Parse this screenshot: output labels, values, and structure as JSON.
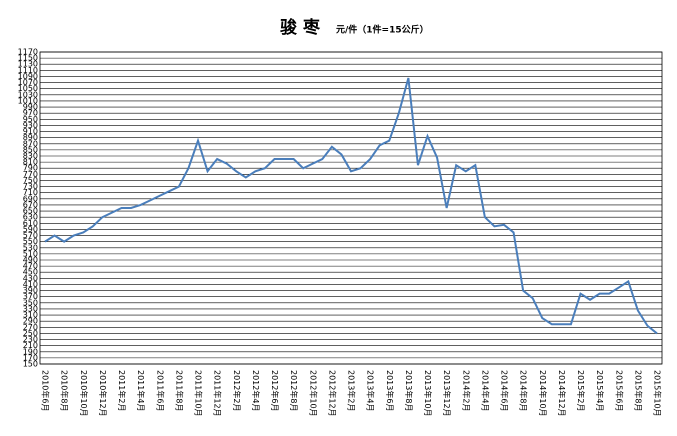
{
  "chart_data": {
    "type": "line",
    "title": "骏 枣",
    "subtitle": "元/件（1件=15公斤）",
    "categories": [
      "2010年6月",
      null,
      "2010年8月",
      null,
      "2010年10月",
      null,
      "2010年12月",
      null,
      "2011年2月",
      null,
      "2011年4月",
      null,
      "2011年6月",
      null,
      "2011年8月",
      null,
      "2011年10月",
      null,
      "2011年12月",
      null,
      "2012年2月",
      null,
      "2012年4月",
      null,
      "2012年6月",
      null,
      "2012年8月",
      null,
      "2012年10月",
      null,
      "2012年12月",
      null,
      "2013年2月",
      null,
      "2013年4月",
      null,
      "2013年6月",
      null,
      "2013年8月",
      null,
      "2013年10月",
      null,
      "2013年12月",
      null,
      "2014年2月",
      null,
      "2014年4月",
      null,
      "2014年6月",
      null,
      "2014年8月",
      null,
      "2014年10月",
      null,
      "2014年12月",
      null,
      "2015年2月",
      null,
      "2015年4月",
      null,
      "2015年6月",
      null,
      "2015年8月",
      null,
      "2015年10月"
    ],
    "values": [
      550,
      570,
      550,
      570,
      580,
      600,
      630,
      645,
      660,
      660,
      670,
      685,
      700,
      715,
      730,
      790,
      880,
      780,
      820,
      805,
      780,
      760,
      780,
      790,
      820,
      820,
      820,
      790,
      805,
      820,
      860,
      835,
      780,
      790,
      820,
      865,
      880,
      970,
      1085,
      800,
      895,
      825,
      660,
      800,
      780,
      800,
      630,
      600,
      605,
      580,
      390,
      365,
      300,
      280,
      280,
      280,
      380,
      360,
      380,
      380,
      400,
      420,
      325,
      275,
      250
    ],
    "color": "#4a7ebb",
    "ylim": [
      150,
      1170
    ],
    "yticks": [
      150,
      170,
      190,
      210,
      230,
      250,
      270,
      290,
      310,
      330,
      350,
      370,
      390,
      410,
      430,
      450,
      470,
      490,
      510,
      530,
      550,
      570,
      590,
      610,
      630,
      650,
      670,
      690,
      710,
      730,
      750,
      770,
      790,
      810,
      830,
      850,
      870,
      890,
      910,
      930,
      950,
      970,
      990,
      1010,
      1030,
      1050,
      1070,
      1090,
      1110,
      1130,
      1150,
      1170
    ],
    "grid": true
  }
}
